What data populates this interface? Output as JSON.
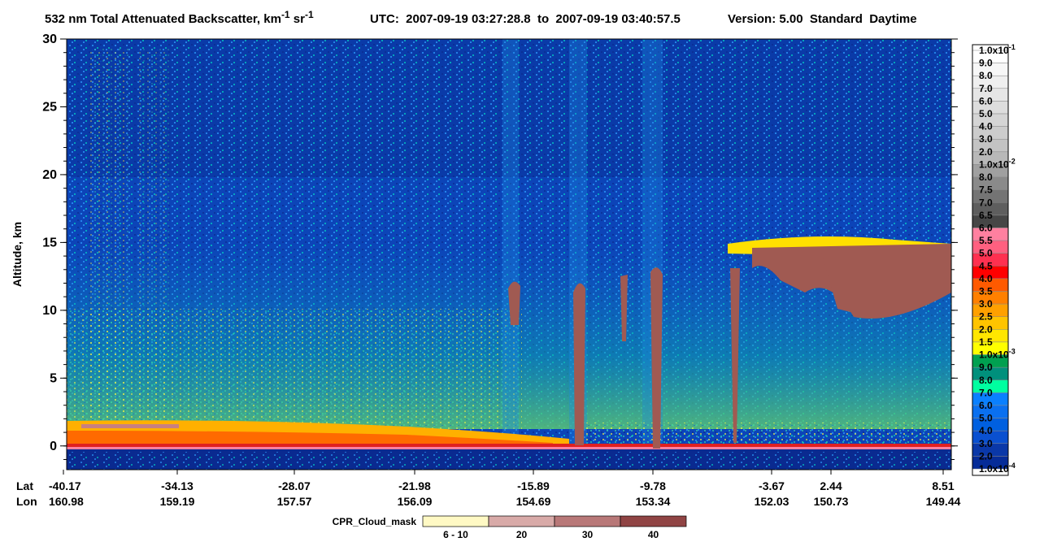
{
  "chart_data": {
    "type": "heatmap",
    "title": [
      "532 nm Total Attenuated Backscatter, km",
      "-1",
      " sr",
      "-1"
    ],
    "utc": "UTC:  2007-09-19 03:27:28.8  to  2007-09-19 03:40:57.5",
    "version": "Version: 5.00  Standard  Daytime",
    "y_label": "Altitude, km",
    "ylim": [
      -1.75,
      30
    ],
    "yticks": [
      0,
      5,
      10,
      15,
      20,
      25,
      30
    ],
    "x_row_labels": [
      "Lat",
      "Lon"
    ],
    "lat": [
      -40.17,
      -34.13,
      -28.07,
      -21.98,
      -15.89,
      -9.78,
      -3.67,
      2.44,
      8.51
    ],
    "lon": [
      160.98,
      159.19,
      157.57,
      156.09,
      154.69,
      153.34,
      152.03,
      150.73,
      149.44
    ],
    "colorbar": {
      "labels": [
        {
          "text": "1.0x10",
          "sup": "-1"
        },
        "9.0",
        "8.0",
        "7.0",
        "6.0",
        "5.0",
        "4.0",
        "3.0",
        "2.0",
        {
          "text": "1.0x10",
          "sup": "-2"
        },
        "8.0",
        "7.5",
        "7.0",
        "6.5",
        "6.0",
        "5.5",
        "5.0",
        "4.5",
        "4.0",
        "3.5",
        "3.0",
        "2.5",
        "2.0",
        "1.5",
        {
          "text": "1.0x10",
          "sup": "-3"
        },
        "9.0",
        "8.0",
        "7.0",
        "6.0",
        "5.0",
        "4.0",
        "3.0",
        "2.0",
        {
          "text": "1.0x10",
          "sup": "-4"
        }
      ],
      "colors": [
        "#ffffff",
        "#f7f7f7",
        "#efefef",
        "#e6e6e6",
        "#dddddd",
        "#d5d5d5",
        "#cccccc",
        "#c3c3c3",
        "#b8b8b8",
        "#a0a0a0",
        "#8a8a8a",
        "#747474",
        "#5e5e5e",
        "#464646",
        "#ff80a0",
        "#ff6080",
        "#ff3050",
        "#ff0000",
        "#ff5a00",
        "#ff8000",
        "#ffa000",
        "#ffc400",
        "#ffe600",
        "#ffff00",
        "#00a050",
        "#00907c",
        "#00ffa0",
        "#0a80ff",
        "#0a70f0",
        "#0060e0",
        "#0a50d0",
        "#0a38a8",
        "#062c98"
      ]
    },
    "cpr_mask": {
      "title": "CPR_Cloud_mask",
      "labels": [
        "6 - 10",
        "20",
        "30",
        "40"
      ],
      "colors": [
        "#fff9c4",
        "#d8aaa8",
        "#b87878",
        "#904444"
      ]
    }
  }
}
